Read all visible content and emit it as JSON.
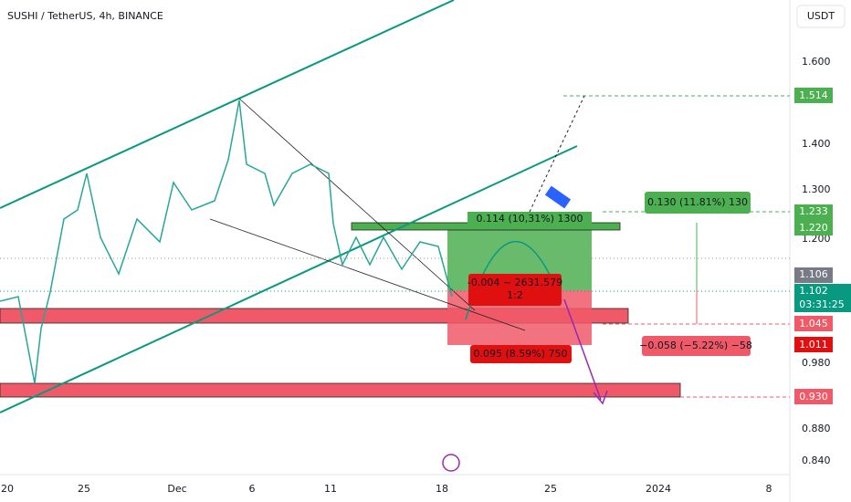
{
  "header": {
    "title": "SUSHI / TetherUS, 4h, BINANCE",
    "currency": "USDT"
  },
  "price_axis": [
    "1.600",
    "1.400",
    "1.300",
    "1.200",
    "0.980",
    "0.880",
    "0.840"
  ],
  "price_tags": {
    "target": "1.514",
    "tp_high": "1.233",
    "tp": "1.220",
    "prev": "1.106",
    "last": "1.102",
    "countdown": "03:31:25",
    "level": "1.045",
    "stop": "1.011",
    "support": "0.930"
  },
  "time_axis": [
    "20",
    "25",
    "Dec",
    "6",
    "11",
    "18",
    "25",
    "2024",
    "8"
  ],
  "annotations": {
    "profit_box": "0.114 (10,31%) 1300",
    "profit_range": "0.130 (11.81%) 130",
    "ratio_top": "-0.004 ~ 2631.579",
    "ratio_bottom": "1:2",
    "loss_box": "0.095 (8.59%) 750",
    "loss_range": "−0.058 (−5.22%) −58"
  }
}
